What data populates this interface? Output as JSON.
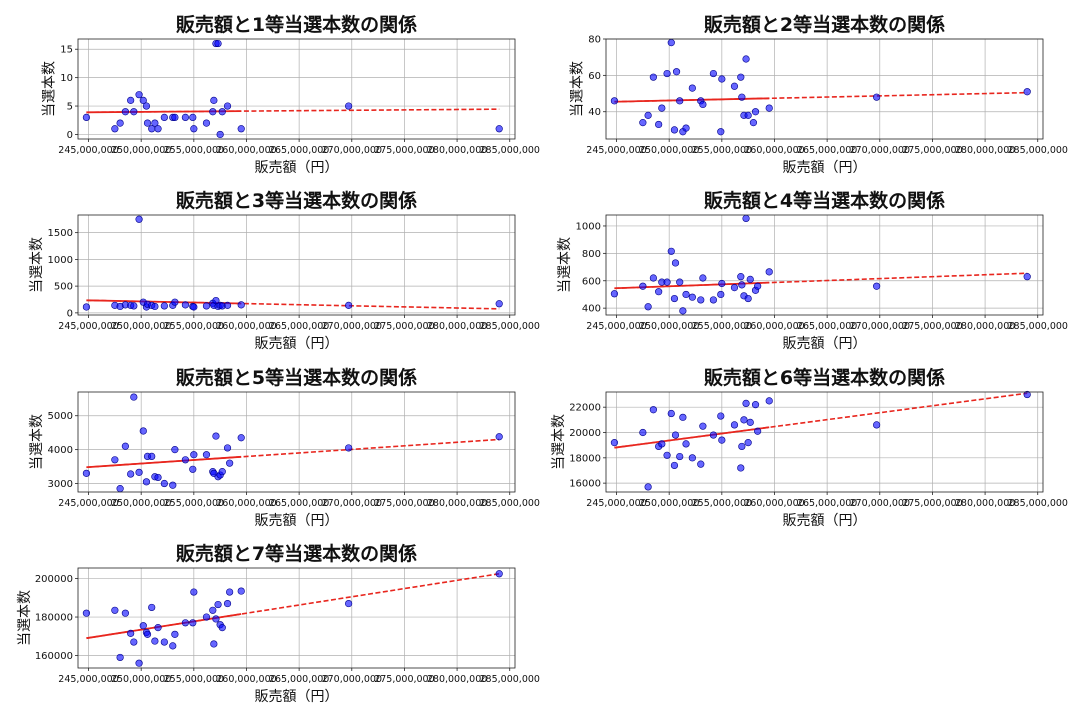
{
  "chart_data": [
    {
      "type": "scatter",
      "title": "販売額と1等当選本数の関係",
      "xlabel": "販売額（円）",
      "ylabel": "当選本数",
      "xlim": [
        244000000,
        285500000
      ],
      "ylim": [
        -0.8,
        16.8
      ],
      "x_ticks": [
        245000000,
        250000000,
        255000000,
        260000000,
        265000000,
        270000000,
        275000000,
        280000000,
        285000000
      ],
      "x_tick_labels": [
        "245,000,000",
        "250,000,000",
        "255,000,000",
        "260,000,000",
        "265,000,000",
        "270,000,000",
        "275,000,000",
        "280,000,000",
        "285,000,000"
      ],
      "y_ticks": [
        0,
        5,
        10,
        15
      ],
      "y_tick_labels": [
        "0",
        "5",
        "10",
        "15"
      ],
      "grid": true,
      "points": [
        [
          244800000,
          3
        ],
        [
          247500000,
          1
        ],
        [
          248000000,
          2
        ],
        [
          248500000,
          4
        ],
        [
          249000000,
          6
        ],
        [
          249300000,
          4
        ],
        [
          249800000,
          7
        ],
        [
          250200000,
          6
        ],
        [
          250500000,
          5
        ],
        [
          250600000,
          2
        ],
        [
          251000000,
          1
        ],
        [
          251300000,
          2
        ],
        [
          251600000,
          1
        ],
        [
          252200000,
          3
        ],
        [
          253000000,
          3
        ],
        [
          253200000,
          3
        ],
        [
          254200000,
          3
        ],
        [
          254900000,
          3
        ],
        [
          255000000,
          1
        ],
        [
          256200000,
          2
        ],
        [
          256800000,
          4
        ],
        [
          256900000,
          6
        ],
        [
          257100000,
          16
        ],
        [
          257300000,
          16
        ],
        [
          257500000,
          0
        ],
        [
          257700000,
          4
        ],
        [
          258200000,
          5
        ],
        [
          259500000,
          1
        ],
        [
          269700000,
          5
        ],
        [
          284000000,
          1
        ]
      ],
      "trend": {
        "x": [
          244800000,
          284000000
        ],
        "y": [
          3.9,
          4.45
        ]
      }
    },
    {
      "type": "scatter",
      "title": "販売額と2等当選本数の関係",
      "xlabel": "販売額（円）",
      "ylabel": "当選本数",
      "xlim": [
        244000000,
        285500000
      ],
      "ylim": [
        25,
        80
      ],
      "x_ticks": [
        245000000,
        250000000,
        255000000,
        260000000,
        265000000,
        270000000,
        275000000,
        280000000,
        285000000
      ],
      "x_tick_labels": [
        "245,000,000",
        "250,000,000",
        "255,000,000",
        "260,000,000",
        "265,000,000",
        "270,000,000",
        "275,000,000",
        "280,000,000",
        "285,000,000"
      ],
      "y_ticks": [
        40,
        60,
        80
      ],
      "y_tick_labels": [
        "40",
        "60",
        "80"
      ],
      "grid": true,
      "points": [
        [
          244800000,
          46
        ],
        [
          247500000,
          34
        ],
        [
          248000000,
          38
        ],
        [
          248500000,
          59
        ],
        [
          249000000,
          33
        ],
        [
          249300000,
          42
        ],
        [
          249800000,
          61
        ],
        [
          250200000,
          78
        ],
        [
          250500000,
          30
        ],
        [
          250700000,
          62
        ],
        [
          251000000,
          46
        ],
        [
          251300000,
          29
        ],
        [
          251600000,
          31
        ],
        [
          252200000,
          53
        ],
        [
          253000000,
          46
        ],
        [
          253200000,
          44
        ],
        [
          254200000,
          61
        ],
        [
          254900000,
          29
        ],
        [
          255000000,
          58
        ],
        [
          256200000,
          54
        ],
        [
          256800000,
          59
        ],
        [
          256900000,
          48
        ],
        [
          257100000,
          38
        ],
        [
          257300000,
          69
        ],
        [
          257500000,
          38
        ],
        [
          258000000,
          34
        ],
        [
          258200000,
          40
        ],
        [
          259500000,
          42
        ],
        [
          269700000,
          48
        ],
        [
          284000000,
          51
        ]
      ],
      "trend": {
        "x": [
          244800000,
          284000000
        ],
        "y": [
          45.5,
          50.5
        ]
      }
    },
    {
      "type": "scatter",
      "title": "販売額と3等当選本数の関係",
      "xlabel": "販売額（円）",
      "ylabel": "当選本数",
      "xlim": [
        244000000,
        285500000
      ],
      "ylim": [
        -40,
        1830
      ],
      "x_ticks": [
        245000000,
        250000000,
        255000000,
        260000000,
        265000000,
        270000000,
        275000000,
        280000000,
        285000000
      ],
      "x_tick_labels": [
        "245,000,000",
        "250,000,000",
        "255,000,000",
        "260,000,000",
        "265,000,000",
        "270,000,000",
        "275,000,000",
        "280,000,000",
        "285,000,000"
      ],
      "y_ticks": [
        0,
        500,
        1000,
        1500
      ],
      "y_tick_labels": [
        "0",
        "500",
        "1000",
        "1500"
      ],
      "grid": true,
      "points": [
        [
          244800000,
          110
        ],
        [
          247500000,
          140
        ],
        [
          248000000,
          120
        ],
        [
          248500000,
          150
        ],
        [
          249000000,
          140
        ],
        [
          249300000,
          130
        ],
        [
          249800000,
          1750
        ],
        [
          250200000,
          200
        ],
        [
          250500000,
          110
        ],
        [
          250600000,
          160
        ],
        [
          251000000,
          140
        ],
        [
          251300000,
          120
        ],
        [
          252200000,
          130
        ],
        [
          253000000,
          140
        ],
        [
          253200000,
          200
        ],
        [
          254200000,
          150
        ],
        [
          254900000,
          120
        ],
        [
          255000000,
          110
        ],
        [
          256200000,
          130
        ],
        [
          256800000,
          180
        ],
        [
          256900000,
          140
        ],
        [
          257100000,
          230
        ],
        [
          257300000,
          120
        ],
        [
          257500000,
          140
        ],
        [
          257700000,
          130
        ],
        [
          258200000,
          140
        ],
        [
          259500000,
          150
        ],
        [
          269700000,
          140
        ],
        [
          284000000,
          170
        ]
      ],
      "trend": {
        "x": [
          244800000,
          284000000
        ],
        "y": [
          235,
          75
        ]
      }
    },
    {
      "type": "scatter",
      "title": "販売額と4等当選本数の関係",
      "xlabel": "販売額（円）",
      "ylabel": "当選本数",
      "xlim": [
        244000000,
        285500000
      ],
      "ylim": [
        350,
        1080
      ],
      "x_ticks": [
        245000000,
        250000000,
        255000000,
        260000000,
        265000000,
        270000000,
        275000000,
        280000000,
        285000000
      ],
      "x_tick_labels": [
        "245,000,000",
        "250,000,000",
        "255,000,000",
        "260,000,000",
        "265,000,000",
        "270,000,000",
        "275,000,000",
        "280,000,000",
        "285,000,000"
      ],
      "y_ticks": [
        400,
        600,
        800,
        1000
      ],
      "y_tick_labels": [
        "400",
        "600",
        "800",
        "1000"
      ],
      "grid": true,
      "points": [
        [
          244800000,
          505
        ],
        [
          247500000,
          560
        ],
        [
          248000000,
          410
        ],
        [
          248500000,
          620
        ],
        [
          249000000,
          520
        ],
        [
          249300000,
          590
        ],
        [
          249800000,
          590
        ],
        [
          250200000,
          815
        ],
        [
          250500000,
          470
        ],
        [
          250600000,
          730
        ],
        [
          251000000,
          590
        ],
        [
          251300000,
          380
        ],
        [
          251600000,
          500
        ],
        [
          252200000,
          480
        ],
        [
          253000000,
          460
        ],
        [
          253200000,
          620
        ],
        [
          254200000,
          460
        ],
        [
          254900000,
          500
        ],
        [
          255000000,
          580
        ],
        [
          256200000,
          550
        ],
        [
          256800000,
          630
        ],
        [
          256900000,
          570
        ],
        [
          257100000,
          490
        ],
        [
          257300000,
          1055
        ],
        [
          257500000,
          470
        ],
        [
          257700000,
          610
        ],
        [
          258200000,
          530
        ],
        [
          258400000,
          560
        ],
        [
          259500000,
          665
        ],
        [
          269700000,
          560
        ],
        [
          284000000,
          630
        ]
      ],
      "trend": {
        "x": [
          244800000,
          284000000
        ],
        "y": [
          545,
          655
        ]
      }
    },
    {
      "type": "scatter",
      "title": "販売額と5等当選本数の関係",
      "xlabel": "販売額（円）",
      "ylabel": "当選本数",
      "xlim": [
        244000000,
        285500000
      ],
      "ylim": [
        2750,
        5700
      ],
      "x_ticks": [
        245000000,
        250000000,
        255000000,
        260000000,
        265000000,
        270000000,
        275000000,
        280000000,
        285000000
      ],
      "x_tick_labels": [
        "245,000,000",
        "250,000,000",
        "255,000,000",
        "260,000,000",
        "265,000,000",
        "270,000,000",
        "275,000,000",
        "280,000,000",
        "285,000,000"
      ],
      "y_ticks": [
        3000,
        4000,
        5000
      ],
      "y_tick_labels": [
        "3000",
        "4000",
        "5000"
      ],
      "grid": true,
      "points": [
        [
          244800000,
          3300
        ],
        [
          247500000,
          3700
        ],
        [
          248000000,
          2850
        ],
        [
          248500000,
          4100
        ],
        [
          249000000,
          3280
        ],
        [
          249300000,
          5550
        ],
        [
          249800000,
          3330
        ],
        [
          250200000,
          4550
        ],
        [
          250500000,
          3050
        ],
        [
          250600000,
          3800
        ],
        [
          251000000,
          3800
        ],
        [
          251300000,
          3200
        ],
        [
          251600000,
          3180
        ],
        [
          252200000,
          3000
        ],
        [
          253000000,
          2950
        ],
        [
          253200000,
          4000
        ],
        [
          254200000,
          3700
        ],
        [
          254900000,
          3420
        ],
        [
          255000000,
          3850
        ],
        [
          256200000,
          3850
        ],
        [
          256800000,
          3350
        ],
        [
          256900000,
          3300
        ],
        [
          257100000,
          4400
        ],
        [
          257300000,
          3200
        ],
        [
          257500000,
          3250
        ],
        [
          257700000,
          3350
        ],
        [
          258200000,
          4050
        ],
        [
          258400000,
          3600
        ],
        [
          259500000,
          4350
        ],
        [
          269700000,
          4050
        ],
        [
          284000000,
          4380
        ]
      ],
      "trend": {
        "x": [
          244800000,
          284000000
        ],
        "y": [
          3480,
          4300
        ]
      }
    },
    {
      "type": "scatter",
      "title": "販売額と6等当選本数の関係",
      "xlabel": "販売額（円）",
      "ylabel": "当選本数",
      "xlim": [
        244000000,
        285500000
      ],
      "ylim": [
        15300,
        23200
      ],
      "x_ticks": [
        245000000,
        250000000,
        255000000,
        260000000,
        265000000,
        270000000,
        275000000,
        280000000,
        285000000
      ],
      "x_tick_labels": [
        "245,000,000",
        "250,000,000",
        "255,000,000",
        "260,000,000",
        "265,000,000",
        "270,000,000",
        "275,000,000",
        "280,000,000",
        "285,000,000"
      ],
      "y_ticks": [
        16000,
        18000,
        20000,
        22000
      ],
      "y_tick_labels": [
        "16000",
        "18000",
        "20000",
        "22000"
      ],
      "grid": true,
      "points": [
        [
          244800000,
          19200
        ],
        [
          247500000,
          20000
        ],
        [
          248000000,
          15700
        ],
        [
          248500000,
          21800
        ],
        [
          249000000,
          18900
        ],
        [
          249300000,
          19100
        ],
        [
          249800000,
          18200
        ],
        [
          250200000,
          21500
        ],
        [
          250500000,
          17400
        ],
        [
          250600000,
          19800
        ],
        [
          251000000,
          18100
        ],
        [
          251300000,
          21200
        ],
        [
          251600000,
          19100
        ],
        [
          252200000,
          18000
        ],
        [
          253000000,
          17500
        ],
        [
          253200000,
          20500
        ],
        [
          254200000,
          19800
        ],
        [
          254900000,
          21300
        ],
        [
          255000000,
          19400
        ],
        [
          256200000,
          20600
        ],
        [
          256800000,
          17200
        ],
        [
          256900000,
          18900
        ],
        [
          257100000,
          21000
        ],
        [
          257300000,
          22300
        ],
        [
          257500000,
          19200
        ],
        [
          257700000,
          20800
        ],
        [
          258200000,
          22200
        ],
        [
          258400000,
          20100
        ],
        [
          259500000,
          22500
        ],
        [
          269700000,
          20600
        ],
        [
          284000000,
          23000
        ]
      ],
      "trend": {
        "x": [
          244800000,
          284000000
        ],
        "y": [
          18800,
          23100
        ]
      }
    },
    {
      "type": "scatter",
      "title": "販売額と7等当選本数の関係",
      "xlabel": "販売額（円）",
      "ylabel": "当選本数",
      "xlim": [
        244000000,
        285500000
      ],
      "ylim": [
        153500,
        205500
      ],
      "x_ticks": [
        245000000,
        250000000,
        255000000,
        260000000,
        265000000,
        270000000,
        275000000,
        280000000,
        285000000
      ],
      "x_tick_labels": [
        "245,000,000",
        "250,000,000",
        "255,000,000",
        "260,000,000",
        "265,000,000",
        "270,000,000",
        "275,000,000",
        "280,000,000",
        "285,000,000"
      ],
      "y_ticks": [
        160000,
        180000,
        200000
      ],
      "y_tick_labels": [
        "160000",
        "180000",
        "200000"
      ],
      "grid": true,
      "points": [
        [
          244800000,
          182000
        ],
        [
          247500000,
          183500
        ],
        [
          248000000,
          159000
        ],
        [
          248500000,
          182000
        ],
        [
          249000000,
          171500
        ],
        [
          249300000,
          167000
        ],
        [
          249800000,
          156000
        ],
        [
          250200000,
          175500
        ],
        [
          250500000,
          172000
        ],
        [
          250600000,
          171000
        ],
        [
          251000000,
          185000
        ],
        [
          251300000,
          167500
        ],
        [
          251600000,
          174500
        ],
        [
          252200000,
          167000
        ],
        [
          253000000,
          165000
        ],
        [
          253200000,
          171000
        ],
        [
          254200000,
          177000
        ],
        [
          254900000,
          177000
        ],
        [
          255000000,
          193000
        ],
        [
          256200000,
          180000
        ],
        [
          256800000,
          183500
        ],
        [
          256900000,
          166000
        ],
        [
          257100000,
          179000
        ],
        [
          257300000,
          186500
        ],
        [
          257500000,
          176000
        ],
        [
          257700000,
          174500
        ],
        [
          258200000,
          187000
        ],
        [
          258400000,
          193000
        ],
        [
          259500000,
          193500
        ],
        [
          269700000,
          187000
        ],
        [
          284000000,
          202500
        ]
      ],
      "trend": {
        "x": [
          244800000,
          284000000
        ],
        "y": [
          169000,
          202500
        ]
      }
    }
  ]
}
